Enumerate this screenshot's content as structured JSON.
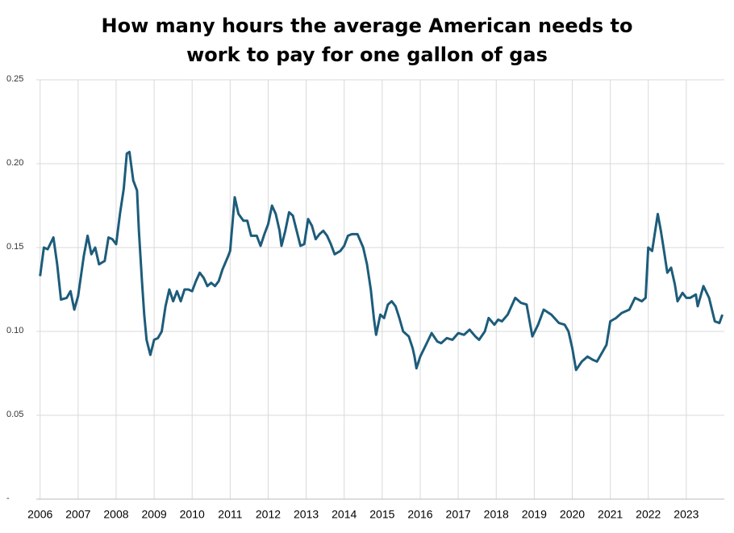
{
  "chart_data": {
    "type": "line",
    "title": "How many hours the average American needs to work to pay for one gallon of gas",
    "series": [
      {
        "name": "Hours of work per gallon",
        "color": "#1d5c7a",
        "x": [
          2006.0,
          2006.1,
          2006.2,
          2006.35,
          2006.45,
          2006.55,
          2006.7,
          2006.8,
          2006.9,
          2007.0,
          2007.15,
          2007.25,
          2007.35,
          2007.45,
          2007.55,
          2007.7,
          2007.8,
          2007.9,
          2008.0,
          2008.1,
          2008.2,
          2008.28,
          2008.35,
          2008.45,
          2008.55,
          2008.6,
          2008.68,
          2008.74,
          2008.8,
          2008.9,
          2009.0,
          2009.1,
          2009.2,
          2009.3,
          2009.4,
          2009.5,
          2009.6,
          2009.7,
          2009.8,
          2009.9,
          2010.0,
          2010.1,
          2010.2,
          2010.3,
          2010.4,
          2010.5,
          2010.6,
          2010.7,
          2010.8,
          2010.95,
          2011.0,
          2011.12,
          2011.22,
          2011.35,
          2011.45,
          2011.55,
          2011.7,
          2011.8,
          2011.9,
          2012.0,
          2012.1,
          2012.2,
          2012.3,
          2012.35,
          2012.45,
          2012.55,
          2012.65,
          2012.75,
          2012.85,
          2012.95,
          2013.05,
          2013.15,
          2013.25,
          2013.35,
          2013.45,
          2013.55,
          2013.65,
          2013.75,
          2013.9,
          2014.0,
          2014.1,
          2014.2,
          2014.35,
          2014.5,
          2014.6,
          2014.7,
          2014.78,
          2014.84,
          2014.95,
          2015.05,
          2015.15,
          2015.25,
          2015.35,
          2015.45,
          2015.55,
          2015.7,
          2015.8,
          2015.85,
          2015.9,
          2016.0,
          2016.15,
          2016.3,
          2016.45,
          2016.55,
          2016.7,
          2016.85,
          2017.0,
          2017.15,
          2017.3,
          2017.45,
          2017.55,
          2017.7,
          2017.8,
          2017.95,
          2018.05,
          2018.15,
          2018.3,
          2018.5,
          2018.65,
          2018.8,
          2018.95,
          2019.1,
          2019.25,
          2019.45,
          2019.65,
          2019.8,
          2019.9,
          2020.0,
          2020.1,
          2020.25,
          2020.4,
          2020.55,
          2020.65,
          2020.8,
          2020.9,
          2021.0,
          2021.15,
          2021.3,
          2021.5,
          2021.65,
          2021.83,
          2021.93,
          2022.0,
          2022.1,
          2022.25,
          2022.33,
          2022.4,
          2022.5,
          2022.6,
          2022.7,
          2022.77,
          2022.9,
          2023.0,
          2023.1,
          2023.25,
          2023.3,
          2023.45,
          2023.6,
          2023.75,
          2023.87,
          2023.95
        ],
        "values": [
          0.133,
          0.15,
          0.149,
          0.156,
          0.14,
          0.119,
          0.12,
          0.124,
          0.113,
          0.121,
          0.145,
          0.157,
          0.146,
          0.15,
          0.14,
          0.142,
          0.156,
          0.155,
          0.152,
          0.17,
          0.185,
          0.206,
          0.207,
          0.19,
          0.184,
          0.16,
          0.13,
          0.11,
          0.095,
          0.086,
          0.095,
          0.096,
          0.1,
          0.115,
          0.125,
          0.118,
          0.124,
          0.118,
          0.125,
          0.125,
          0.124,
          0.13,
          0.135,
          0.132,
          0.127,
          0.129,
          0.127,
          0.13,
          0.137,
          0.145,
          0.148,
          0.18,
          0.17,
          0.166,
          0.166,
          0.157,
          0.157,
          0.151,
          0.158,
          0.164,
          0.175,
          0.17,
          0.16,
          0.151,
          0.16,
          0.171,
          0.169,
          0.16,
          0.151,
          0.152,
          0.167,
          0.163,
          0.155,
          0.158,
          0.16,
          0.157,
          0.152,
          0.146,
          0.148,
          0.151,
          0.157,
          0.158,
          0.158,
          0.15,
          0.14,
          0.125,
          0.108,
          0.098,
          0.11,
          0.108,
          0.116,
          0.118,
          0.115,
          0.108,
          0.1,
          0.097,
          0.09,
          0.085,
          0.078,
          0.085,
          0.092,
          0.099,
          0.094,
          0.093,
          0.096,
          0.095,
          0.099,
          0.098,
          0.101,
          0.097,
          0.095,
          0.1,
          0.108,
          0.104,
          0.107,
          0.106,
          0.11,
          0.12,
          0.117,
          0.116,
          0.097,
          0.104,
          0.113,
          0.11,
          0.105,
          0.104,
          0.1,
          0.09,
          0.077,
          0.082,
          0.085,
          0.083,
          0.082,
          0.088,
          0.092,
          0.106,
          0.108,
          0.111,
          0.113,
          0.12,
          0.118,
          0.12,
          0.15,
          0.148,
          0.17,
          0.16,
          0.15,
          0.135,
          0.138,
          0.128,
          0.118,
          0.123,
          0.12,
          0.12,
          0.122,
          0.115,
          0.127,
          0.12,
          0.106,
          0.105,
          0.11
        ]
      }
    ],
    "xlim": [
      2005.9,
      2024.0
    ],
    "xticks": [
      2006,
      2007,
      2008,
      2009,
      2010,
      2011,
      2012,
      2013,
      2014,
      2015,
      2016,
      2017,
      2018,
      2019,
      2020,
      2021,
      2022,
      2023
    ],
    "ylim": [
      0,
      0.25
    ],
    "yticks": [
      {
        "value": 0,
        "label": "-"
      },
      0.05,
      {
        "value": 0.1,
        "label": "0.10"
      },
      0.15,
      {
        "value": 0.2,
        "label": "0.20"
      },
      0.25
    ],
    "grid": true
  }
}
